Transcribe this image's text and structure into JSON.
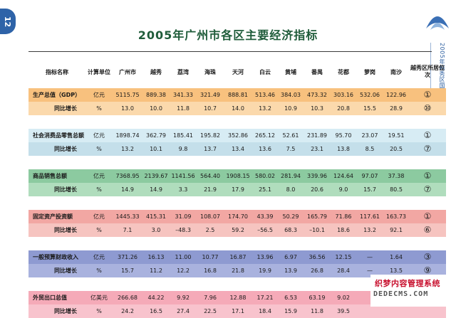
{
  "page_number": "12",
  "title": "2005年广州市各区主要经济指标",
  "side_caption": "2005年越秀区国民经济和社会发展统计公报",
  "header": {
    "indicator": "指标名称",
    "unit": "计算单位",
    "districts": [
      "广州市",
      "越秀",
      "荔湾",
      "海珠",
      "天河",
      "白云",
      "黄埔",
      "番禺",
      "花都",
      "萝岗",
      "南沙"
    ],
    "rank": "越秀区所居位次"
  },
  "rows": [
    {
      "name": "生产总值（GDP）",
      "unit": "亿元",
      "values": [
        "5115.75",
        "889.38",
        "341.33",
        "321.49",
        "888.81",
        "513.46",
        "384.03",
        "473.32",
        "303.16",
        "532.06",
        "122.96"
      ],
      "rank": "①"
    },
    {
      "name": "同比增长",
      "unit": "%",
      "values": [
        "13.0",
        "10.0",
        "11.8",
        "10.7",
        "14.0",
        "13.2",
        "10.9",
        "10.3",
        "20.8",
        "15.5",
        "28.9"
      ],
      "rank": "⑩"
    },
    {
      "name": "社会消费品零售总额",
      "unit": "亿元",
      "values": [
        "1898.74",
        "362.79",
        "185.41",
        "195.82",
        "352.86",
        "265.12",
        "52.61",
        "231.89",
        "95.70",
        "23.07",
        "19.51"
      ],
      "rank": "①"
    },
    {
      "name": "同比增长",
      "unit": "%",
      "values": [
        "13.2",
        "10.1",
        "9.8",
        "13.7",
        "13.4",
        "13.6",
        "7.5",
        "23.1",
        "13.8",
        "8.5",
        "20.5"
      ],
      "rank": "⑦"
    },
    {
      "name": "商品销售总额",
      "unit": "亿元",
      "values": [
        "7368.95",
        "2139.67",
        "1141.56",
        "564.40",
        "1908.15",
        "580.02",
        "281.94",
        "339.96",
        "124.64",
        "97.07",
        "37.38"
      ],
      "rank": "①"
    },
    {
      "name": "同比增长",
      "unit": "%",
      "values": [
        "14.9",
        "14.9",
        "3.3",
        "21.9",
        "17.9",
        "25.1",
        "8.0",
        "20.6",
        "9.0",
        "15.7",
        "80.5"
      ],
      "rank": "⑦"
    },
    {
      "name": "固定资产投资额",
      "unit": "亿元",
      "values": [
        "1445.33",
        "415.31",
        "31.09",
        "108.07",
        "174.70",
        "43.39",
        "50.29",
        "165.79",
        "71.86",
        "117.61",
        "163.73"
      ],
      "rank": "①"
    },
    {
      "name": "同比增长",
      "unit": "%",
      "values": [
        "7.1",
        "3.0",
        "–48.3",
        "2.5",
        "59.2",
        "–56.5",
        "68.3",
        "–10.1",
        "18.6",
        "13.2",
        "92.1"
      ],
      "rank": "⑥"
    },
    {
      "name": "一般预算财政收入",
      "unit": "亿元",
      "values": [
        "371.26",
        "16.13",
        "11.00",
        "10.77",
        "16.87",
        "13.96",
        "6.97",
        "36.56",
        "12.15",
        "—",
        "1.64"
      ],
      "rank": "③"
    },
    {
      "name": "同比增长",
      "unit": "%",
      "values": [
        "15.7",
        "11.2",
        "12.2",
        "16.8",
        "21.8",
        "19.9",
        "13.9",
        "26.8",
        "28.4",
        "—",
        "13.5"
      ],
      "rank": "⑨"
    },
    {
      "name": "外贸出口总值",
      "unit": "亿美元",
      "values": [
        "266.68",
        "44.22",
        "9.92",
        "7.96",
        "12.88",
        "17.21",
        "6.53",
        "63.19",
        "9.02",
        "",
        ""
      ],
      "rank": "②"
    },
    {
      "name": "同比增长",
      "unit": "%",
      "values": [
        "24.2",
        "16.5",
        "27.4",
        "22.5",
        "17.1",
        "18.4",
        "15.9",
        "11.8",
        "39.5",
        "",
        ""
      ],
      "rank": ""
    }
  ],
  "watermark": {
    "top": "织梦内容管理系统",
    "bottom": "DEDECMS.COM"
  }
}
